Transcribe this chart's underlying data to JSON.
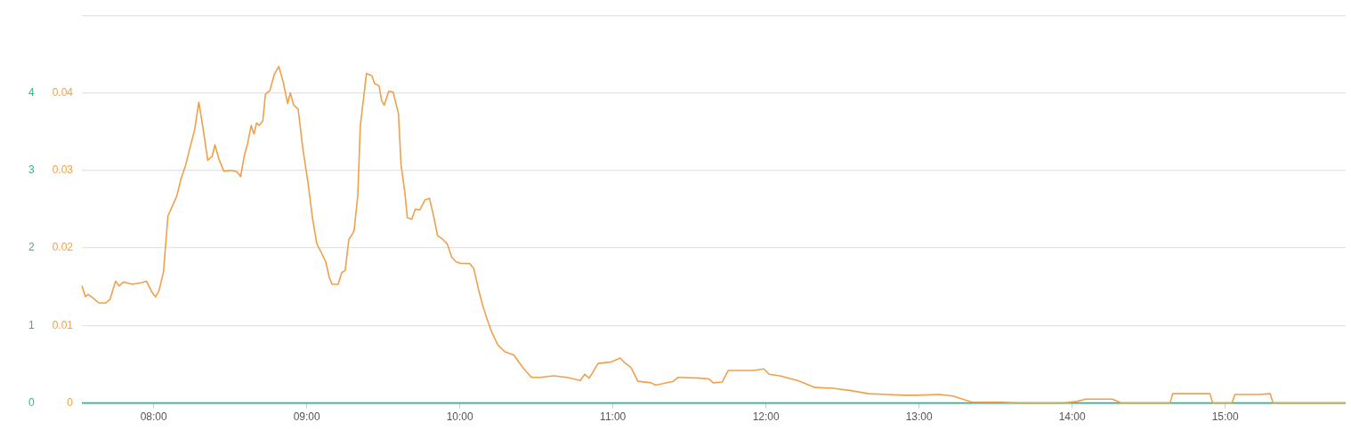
{
  "chart_data": {
    "type": "line",
    "xlim": [
      7.531,
      15.787
    ],
    "xticks": [
      {
        "value": 8,
        "label": "08:00"
      },
      {
        "value": 9,
        "label": "09:00"
      },
      {
        "value": 10,
        "label": "10:00"
      },
      {
        "value": 11,
        "label": "11:00"
      },
      {
        "value": 12,
        "label": "12:00"
      },
      {
        "value": 13,
        "label": "13:00"
      },
      {
        "value": 14,
        "label": "14:00"
      },
      {
        "value": 15,
        "label": "15:00"
      }
    ],
    "ylim": [
      0,
      0.05
    ],
    "yticks": [
      0,
      0.01,
      0.02,
      0.03,
      0.04,
      {
        "value": 0.05,
        "label": null
      }
    ],
    "y2lim": [
      0,
      5
    ],
    "y2ticks": [
      0,
      1,
      2,
      3,
      4
    ],
    "grid": "y",
    "marker": "none",
    "line_style": "solid",
    "series": [
      {
        "color": "#f0a04b",
        "x": [
          7.531,
          7.554,
          7.571,
          7.6,
          7.641,
          7.687,
          7.716,
          7.733,
          7.751,
          7.774,
          7.803,
          7.861,
          7.919,
          7.954,
          7.988,
          8.012,
          8.035,
          8.064,
          8.093,
          8.122,
          8.151,
          8.18,
          8.209,
          8.238,
          8.267,
          8.295,
          8.324,
          8.353,
          8.382,
          8.4,
          8.429,
          8.458,
          8.51,
          8.545,
          8.568,
          8.591,
          8.614,
          8.637,
          8.655,
          8.672,
          8.689,
          8.713,
          8.73,
          8.759,
          8.788,
          8.817,
          8.846,
          8.875,
          8.892,
          8.915,
          8.944,
          8.973,
          9.008,
          9.037,
          9.066,
          9.095,
          9.124,
          9.147,
          9.165,
          9.205,
          9.228,
          9.251,
          9.275,
          9.292,
          9.309,
          9.333,
          9.35,
          9.367,
          9.39,
          9.425,
          9.443,
          9.472,
          9.489,
          9.506,
          9.535,
          9.564,
          9.599,
          9.616,
          9.64,
          9.657,
          9.686,
          9.709,
          9.738,
          9.773,
          9.802,
          9.831,
          9.854,
          9.889,
          9.918,
          9.947,
          9.976,
          10.005,
          10.063,
          10.092,
          10.12,
          10.149,
          10.178,
          10.207,
          10.248,
          10.294,
          10.352,
          10.41,
          10.468,
          10.526,
          10.613,
          10.7,
          10.787,
          10.816,
          10.845,
          10.903,
          10.99,
          11.048,
          11.076,
          11.117,
          11.163,
          11.25,
          11.279,
          11.395,
          11.424,
          11.569,
          11.627,
          11.656,
          11.714,
          11.754,
          11.917,
          11.986,
          12.021,
          12.09,
          12.206,
          12.322,
          12.438,
          12.554,
          12.67,
          12.786,
          12.902,
          12.988,
          13.133,
          13.22,
          13.348,
          13.539,
          13.655,
          13.944,
          14.031,
          14.089,
          14.263,
          14.321,
          14.64,
          14.657,
          14.9,
          14.918,
          15.045,
          15.063,
          15.219,
          15.294,
          15.312,
          15.787
        ],
        "values": [
          0.0151,
          0.0137,
          0.014,
          0.0136,
          0.0129,
          0.0129,
          0.0134,
          0.0146,
          0.0157,
          0.0151,
          0.0156,
          0.0153,
          0.0155,
          0.0157,
          0.0143,
          0.0137,
          0.0145,
          0.0169,
          0.0241,
          0.0254,
          0.0267,
          0.029,
          0.0307,
          0.033,
          0.0352,
          0.0388,
          0.0352,
          0.0313,
          0.0318,
          0.0333,
          0.0313,
          0.0299,
          0.03,
          0.0298,
          0.0292,
          0.0318,
          0.0335,
          0.0358,
          0.0347,
          0.0361,
          0.0358,
          0.0364,
          0.0398,
          0.0403,
          0.0424,
          0.0434,
          0.0414,
          0.0386,
          0.04,
          0.0384,
          0.0379,
          0.033,
          0.0284,
          0.0239,
          0.0205,
          0.0194,
          0.0182,
          0.0162,
          0.0153,
          0.0153,
          0.0168,
          0.0171,
          0.0211,
          0.0216,
          0.0222,
          0.0267,
          0.0358,
          0.0386,
          0.0425,
          0.0422,
          0.0412,
          0.0409,
          0.039,
          0.0384,
          0.0402,
          0.0401,
          0.0373,
          0.0307,
          0.0273,
          0.0239,
          0.0237,
          0.025,
          0.0249,
          0.0262,
          0.0264,
          0.0239,
          0.0216,
          0.0211,
          0.0205,
          0.0188,
          0.0182,
          0.018,
          0.018,
          0.0173,
          0.0148,
          0.0126,
          0.0108,
          0.0092,
          0.0075,
          0.0066,
          0.0062,
          0.0046,
          0.0033,
          0.0033,
          0.0035,
          0.0033,
          0.0029,
          0.0037,
          0.0032,
          0.0051,
          0.0053,
          0.0058,
          0.0052,
          0.0046,
          0.0028,
          0.0026,
          0.0023,
          0.0028,
          0.0033,
          0.0032,
          0.0031,
          0.0026,
          0.0027,
          0.0042,
          0.0042,
          0.0044,
          0.0037,
          0.0035,
          0.0029,
          0.002,
          0.0019,
          0.0016,
          0.0012,
          0.0011,
          0.001,
          0.001,
          0.0011,
          0.0009,
          0.0001,
          0.0001,
          0,
          0,
          0.0002,
          0.0005,
          0.0005,
          0,
          0,
          0.0012,
          0.0012,
          0,
          0,
          0.0011,
          0.0011,
          0.0012,
          0,
          0
        ]
      },
      {
        "color": "#2fb58a",
        "axis": "y2",
        "x": [
          7.531,
          15.787
        ],
        "values": [
          0,
          0
        ]
      }
    ]
  }
}
